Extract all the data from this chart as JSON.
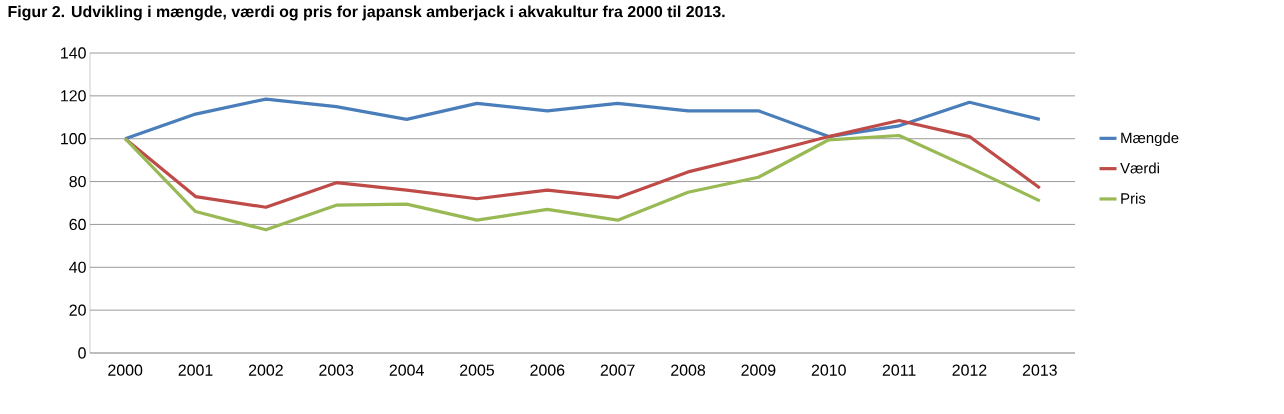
{
  "chart_data": {
    "type": "line",
    "title": "Figur 2. Udvikling i mængde, værdi og pris for japansk amberjack i akvakultur fra 2000 til 2013.",
    "categories": [
      "2000",
      "2001",
      "2002",
      "2003",
      "2004",
      "2005",
      "2006",
      "2007",
      "2008",
      "2009",
      "2010",
      "2011",
      "2012",
      "2013"
    ],
    "series": [
      {
        "name": "Mængde",
        "color": "#4a7ebb",
        "values": [
          100,
          111.5,
          118.5,
          115,
          109,
          116.5,
          113,
          116.5,
          113,
          113,
          101,
          106,
          117,
          109
        ]
      },
      {
        "name": "Værdi",
        "color": "#be4b48",
        "values": [
          100,
          73,
          68,
          79.5,
          76,
          72,
          76,
          72.5,
          84.5,
          92.5,
          101,
          108.5,
          101,
          77
        ]
      },
      {
        "name": "Pris",
        "color": "#98b954",
        "values": [
          100,
          66,
          57.5,
          69,
          69.5,
          62,
          67,
          62,
          75,
          82,
          99.5,
          101.5,
          86.5,
          71
        ]
      }
    ],
    "ylim": [
      0,
      140
    ],
    "yticks": [
      0,
      20,
      40,
      60,
      80,
      100,
      120,
      140
    ],
    "grid": "y",
    "legend": "right",
    "marker": "none",
    "line_style": "solid"
  }
}
